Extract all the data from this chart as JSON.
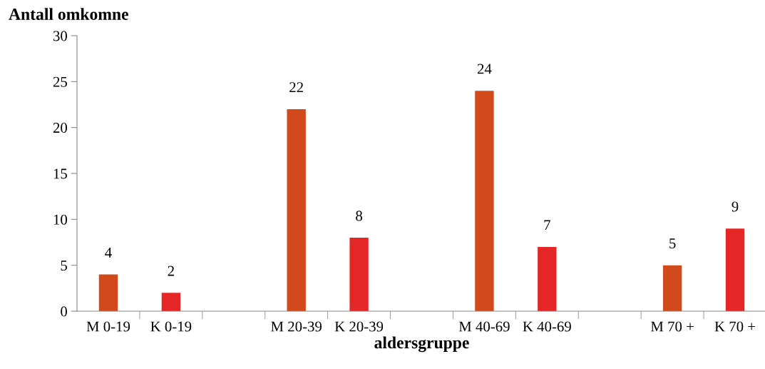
{
  "chart_data": {
    "type": "bar",
    "ylabel": "Antall omkomne",
    "xlabel": "aldersgruppe",
    "categories": [
      "M 0-19",
      "K 0-19",
      null,
      "M 20-39",
      "K 20-39",
      null,
      "M 40-69",
      "K 40-69",
      null,
      "M 70 +",
      "K 70 +"
    ],
    "values": [
      4,
      2,
      null,
      22,
      8,
      null,
      24,
      7,
      null,
      5,
      9
    ],
    "colors": [
      "#d04a1c",
      "#e52626",
      "#d04a1c",
      "#d04a1c",
      "#e52626",
      "#d04a1c",
      "#d04a1c",
      "#e52626",
      "#d04a1c",
      "#d04a1c",
      "#e52626"
    ],
    "ylim": [
      0,
      30
    ],
    "yticks": [
      0,
      5,
      10,
      15,
      20,
      25,
      30
    ],
    "data_labels": true,
    "grid": false,
    "legend": false
  }
}
